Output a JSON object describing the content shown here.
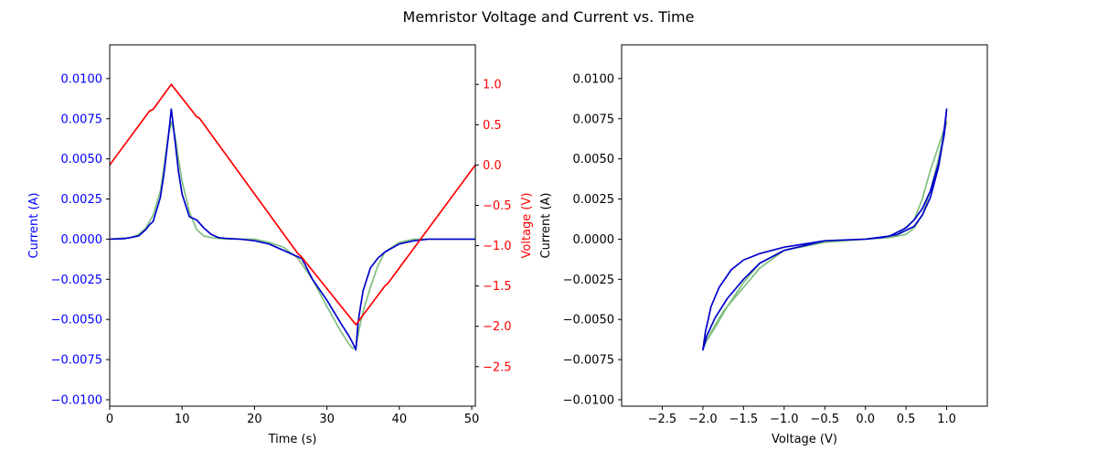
{
  "figure": {
    "title": "Memristor Voltage and Current vs. Time"
  },
  "colors": {
    "current": "#0000ff",
    "current_line": "#0000cc",
    "voltage": "#ff0000",
    "model": "#7fbf7f",
    "axis": "#000000"
  },
  "chart_data": [
    {
      "type": "line",
      "title": "",
      "xlabel": "Time (s)",
      "ylabel": "Current (A)",
      "y2label": "Voltage (V)",
      "xlim": [
        0,
        50.5
      ],
      "ylim": [
        -0.0104,
        0.0121
      ],
      "y2lim": [
        -2.99,
        1.49
      ],
      "xticks": [
        0,
        10,
        20,
        30,
        40,
        50
      ],
      "xtick_labels": [
        "0",
        "10",
        "20",
        "30",
        "40",
        "50"
      ],
      "yticks": [
        -0.01,
        -0.0075,
        -0.005,
        -0.0025,
        0,
        0.0025,
        0.005,
        0.0075,
        0.01
      ],
      "ytick_labels": [
        "−0.0100",
        "−0.0075",
        "−0.0050",
        "−0.0025",
        "0.0000",
        "0.0025",
        "0.0050",
        "0.0075",
        "0.0100"
      ],
      "y2ticks": [
        -2.5,
        -2.0,
        -1.5,
        -1.0,
        -0.5,
        0.0,
        0.5,
        1.0
      ],
      "y2tick_labels": [
        "−2.5",
        "−2.0",
        "−1.5",
        "−1.0",
        "−0.5",
        "0.0",
        "0.5",
        "1.0"
      ],
      "grid": false,
      "series": [
        {
          "axis": "left",
          "color": "#7fbf7f",
          "x": [
            0,
            3,
            4,
            5,
            6,
            7,
            7.5,
            8,
            8.5,
            9,
            9.5,
            10,
            11,
            12,
            13,
            14,
            16,
            18,
            20,
            22,
            24,
            26,
            28,
            30,
            32,
            33,
            33.5,
            34,
            34.5,
            35,
            36,
            37,
            38,
            40,
            42,
            44,
            47,
            50.5
          ],
          "y": [
            0,
            0.0001,
            0.0003,
            0.0007,
            0.0015,
            0.003,
            0.0045,
            0.0062,
            0.0073,
            0.0065,
            0.005,
            0.0036,
            0.0017,
            0.0006,
            0.0002,
            0.0001,
            0,
            0,
            0,
            -0.0002,
            -0.0005,
            -0.0012,
            -0.0025,
            -0.0042,
            -0.0058,
            -0.0065,
            -0.0068,
            -0.0067,
            -0.0055,
            -0.0045,
            -0.003,
            -0.0017,
            -0.0008,
            -0.0002,
            0,
            0,
            0,
            0
          ]
        },
        {
          "axis": "left",
          "color": "#0000cc",
          "x": [
            0,
            2,
            4,
            5,
            5.5,
            6,
            7,
            7.5,
            8,
            8.3,
            8.5,
            8.7,
            9,
            9.5,
            10,
            11,
            12,
            13,
            14,
            15,
            16,
            18,
            20,
            22,
            24,
            26,
            26.5,
            27,
            28,
            30,
            32,
            33,
            33.6,
            34,
            34.3,
            34.6,
            35,
            36,
            37,
            38,
            40,
            42,
            44,
            47,
            50.5
          ],
          "y": [
            0,
            3e-05,
            0.0002,
            0.0006,
            0.0009,
            0.0011,
            0.0026,
            0.0041,
            0.006,
            0.0072,
            0.0081,
            0.0074,
            0.0062,
            0.0042,
            0.0028,
            0.0014,
            0.0012,
            0.0007,
            0.0003,
            0.0001,
            5e-05,
            0,
            -0.0001,
            -0.0003,
            -0.0007,
            -0.0011,
            -0.0012,
            -0.0016,
            -0.0025,
            -0.0038,
            -0.0053,
            -0.006,
            -0.0065,
            -0.0069,
            -0.0052,
            -0.0043,
            -0.0032,
            -0.0018,
            -0.0012,
            -0.0008,
            -0.0003,
            -0.0001,
            0,
            0,
            0
          ]
        },
        {
          "axis": "right",
          "color": "#ff0000",
          "x": [
            0,
            5.5,
            6,
            8.5,
            12,
            12.4,
            26,
            26.4,
            34,
            38,
            38.4,
            50.5
          ],
          "y": [
            0,
            0.67,
            0.69,
            1.0,
            0.6,
            0.58,
            -1.1,
            -1.13,
            -1.98,
            -1.5,
            -1.47,
            0.0
          ]
        }
      ]
    },
    {
      "type": "line",
      "title": "",
      "xlabel": "Voltage (V)",
      "ylabel": "Current (A)",
      "xlim": [
        -3.0,
        1.5
      ],
      "ylim": [
        -0.0104,
        0.0121
      ],
      "xticks": [
        -2.5,
        -2.0,
        -1.5,
        -1.0,
        -0.5,
        0.0,
        0.5,
        1.0
      ],
      "xtick_labels": [
        "−2.5",
        "−2.0",
        "−1.5",
        "−1.0",
        "−0.5",
        "0.0",
        "0.5",
        "1.0"
      ],
      "yticks": [
        -0.01,
        -0.0075,
        -0.005,
        -0.0025,
        0,
        0.0025,
        0.005,
        0.0075,
        0.01
      ],
      "ytick_labels": [
        "−0.0100",
        "−0.0075",
        "−0.0050",
        "−0.0025",
        "0.0000",
        "0.0025",
        "0.0050",
        "0.0075",
        "0.0100"
      ],
      "grid": false,
      "series": [
        {
          "color": "#7fbf7f",
          "x": [
            0,
            0.3,
            0.5,
            0.6,
            0.7,
            0.8,
            0.9,
            0.95,
            1.0,
            0.9,
            0.8,
            0.7,
            0.6,
            0.4,
            0.2,
            0,
            -0.5,
            -1.0,
            -1.3,
            -1.5,
            -1.7,
            -1.85,
            -1.95,
            -2.0,
            -1.9,
            -1.75,
            -1.5,
            -1.3,
            -1.0,
            -0.5,
            0
          ],
          "y": [
            0,
            0.0001,
            0.0003,
            0.0007,
            0.0015,
            0.003,
            0.005,
            0.0062,
            0.0073,
            0.0058,
            0.0043,
            0.0025,
            0.0012,
            0.0003,
            0.0001,
            0,
            -0.0002,
            -0.0007,
            -0.0015,
            -0.0027,
            -0.0042,
            -0.0055,
            -0.0063,
            -0.0068,
            -0.0058,
            -0.0045,
            -0.003,
            -0.0018,
            -0.0007,
            -0.0001,
            0
          ]
        },
        {
          "color": "#0000cc",
          "x": [
            0,
            0.2,
            0.4,
            0.6,
            0.7,
            0.8,
            0.9,
            0.95,
            1.0,
            0.97,
            0.9,
            0.8,
            0.7,
            0.6,
            0.5,
            0.3,
            0,
            -0.5,
            -1.0,
            -1.3,
            -1.5,
            -1.7,
            -1.85,
            -1.95,
            -2.0,
            -1.97,
            -1.9,
            -1.8,
            -1.65,
            -1.5,
            -1.3,
            -1.0,
            -0.5,
            0
          ],
          "y": [
            0,
            0.0001,
            0.0003,
            0.0008,
            0.0015,
            0.0026,
            0.0045,
            0.006,
            0.0081,
            0.0065,
            0.0047,
            0.003,
            0.0019,
            0.0012,
            0.0007,
            0.0002,
            0,
            -0.0001,
            -0.0007,
            -0.0015,
            -0.0025,
            -0.0037,
            -0.0049,
            -0.006,
            -0.0069,
            -0.0058,
            -0.0042,
            -0.003,
            -0.0019,
            -0.0013,
            -0.0009,
            -0.0005,
            -0.0001,
            0
          ]
        }
      ]
    }
  ]
}
